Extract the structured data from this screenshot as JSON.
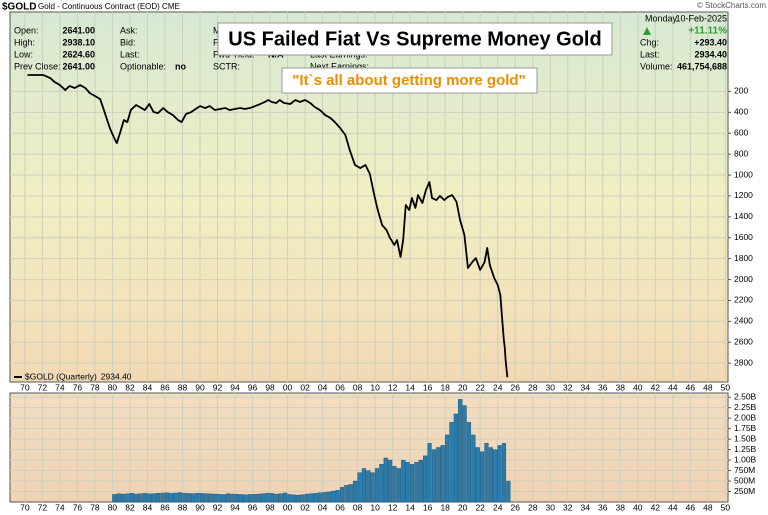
{
  "header": {
    "symbol": "$GOLD",
    "description": "Gold - Continuous Contract (EOD) CME",
    "copyright": "© StockCharts.com",
    "quote": [
      {
        "label": "Open:",
        "value": "2641.00"
      },
      {
        "label": "High:",
        "value": "2938.10"
      },
      {
        "label": "Low:",
        "value": "2624.60"
      },
      {
        "label": "Prev Close:",
        "value": "2641.00"
      }
    ],
    "quote2": [
      "Ask:",
      "Bid:",
      "Last:"
    ],
    "optionable": {
      "label": "Optionable:",
      "value": "no"
    },
    "col3": [
      "Mk",
      "Fv"
    ],
    "fwd_yield": {
      "label": "Fwd Yield:",
      "value": "N/A"
    },
    "sctr": "SCTR:",
    "col4": [
      "Last Earnings:",
      "Next Earnings:"
    ],
    "weekday": "Monday",
    "date": "10-Feb-2025",
    "change_pct": "+11.11%",
    "stats": [
      {
        "label": "Chg:",
        "value": "+293.40"
      },
      {
        "label": "Last:",
        "value": "2934.40"
      },
      {
        "label": "Volume:",
        "value": "461,754,688"
      }
    ],
    "title": "US Failed Fiat Vs Supreme Money Gold",
    "subtitle": "\"It`s all about getting more gold\""
  },
  "chart_data": [
    {
      "type": "line",
      "y_inverted": true,
      "grid": true,
      "xlim": [
        1968.3,
        2050.3
      ],
      "ylim": [
        -560,
        2980
      ],
      "yticks": [
        200,
        400,
        600,
        800,
        1000,
        1200,
        1400,
        1600,
        1800,
        2000,
        2200,
        2400,
        2600,
        2800
      ],
      "xticks": [
        {
          "value": 1970,
          "label": "70"
        },
        {
          "value": 1972,
          "label": "72"
        },
        {
          "value": 1974,
          "label": "74"
        },
        {
          "value": 1976,
          "label": "76"
        },
        {
          "value": 1978,
          "label": "78"
        },
        {
          "value": 1980,
          "label": "80"
        },
        {
          "value": 1982,
          "label": "82"
        },
        {
          "value": 1984,
          "label": "84"
        },
        {
          "value": 1986,
          "label": "86"
        },
        {
          "value": 1988,
          "label": "88"
        },
        {
          "value": 1990,
          "label": "90"
        },
        {
          "value": 1992,
          "label": "92"
        },
        {
          "value": 1994,
          "label": "94"
        },
        {
          "value": 1996,
          "label": "96"
        },
        {
          "value": 1998,
          "label": "98"
        },
        {
          "value": 2000,
          "label": "00"
        },
        {
          "value": 2002,
          "label": "02"
        },
        {
          "value": 2004,
          "label": "04"
        },
        {
          "value": 2006,
          "label": "06"
        },
        {
          "value": 2008,
          "label": "08"
        },
        {
          "value": 2010,
          "label": "10"
        },
        {
          "value": 2012,
          "label": "12"
        },
        {
          "value": 2014,
          "label": "14"
        },
        {
          "value": 2016,
          "label": "16"
        },
        {
          "value": 2018,
          "label": "18"
        },
        {
          "value": 2020,
          "label": "20"
        },
        {
          "value": 2022,
          "label": "22"
        },
        {
          "value": 2024,
          "label": "24"
        },
        {
          "value": 2026,
          "label": "26"
        },
        {
          "value": 2028,
          "label": "28"
        },
        {
          "value": 2030,
          "label": "30"
        },
        {
          "value": 2032,
          "label": "32"
        },
        {
          "value": 2034,
          "label": "34"
        },
        {
          "value": 2036,
          "label": "36"
        },
        {
          "value": 2038,
          "label": "38"
        },
        {
          "value": 2040,
          "label": "40"
        },
        {
          "value": 2042,
          "label": "42"
        },
        {
          "value": 2044,
          "label": "44"
        },
        {
          "value": 2046,
          "label": "46"
        },
        {
          "value": 2048,
          "label": "48"
        },
        {
          "value": 2050,
          "label": "50"
        }
      ],
      "x": [
        1970.3,
        1972.1,
        1972.9,
        1973.4,
        1974.0,
        1974.6,
        1975.1,
        1975.7,
        1976.3,
        1976.9,
        1977.4,
        1978.0,
        1978.6,
        1979.1,
        1979.7,
        1980.2,
        1980.5,
        1980.9,
        1981.3,
        1981.7,
        1982.1,
        1982.7,
        1983.1,
        1983.7,
        1984.2,
        1984.7,
        1985.2,
        1985.8,
        1986.3,
        1986.9,
        1987.5,
        1987.9,
        1988.4,
        1989.0,
        1989.5,
        1990.0,
        1990.6,
        1991.1,
        1991.7,
        1992.3,
        1992.9,
        1993.4,
        1994.0,
        1994.6,
        1995.1,
        1995.7,
        1996.3,
        1996.9,
        1997.4,
        1997.8,
        1998.2,
        1998.7,
        1999.1,
        1999.6,
        2000.3,
        2000.9,
        2001.4,
        2002.0,
        2002.6,
        2003.1,
        2003.7,
        2004.3,
        2004.9,
        2005.4,
        2006.0,
        2006.6,
        2007.1,
        2007.7,
        2008.3,
        2008.9,
        2009.4,
        2009.9,
        2010.3,
        2010.8,
        2011.3,
        2011.7,
        2012.2,
        2012.5,
        2012.9,
        2013.2,
        2013.5,
        2013.9,
        2014.2,
        2014.6,
        2014.9,
        2015.4,
        2015.8,
        2016.2,
        2016.5,
        2017.0,
        2017.4,
        2017.9,
        2018.3,
        2018.8,
        2019.3,
        2019.7,
        2020.2,
        2020.6,
        2021.1,
        2021.5,
        2022.0,
        2022.5,
        2022.8,
        2023.1,
        2023.6,
        2024.0,
        2024.3,
        2024.5,
        2024.7,
        2024.8,
        2024.9,
        2025.1
      ],
      "series": [
        {
          "name": "$GOLD (Quarterly)",
          "color": "#000000",
          "legend_value": "2934.40",
          "values": [
            43,
            43,
            72,
            110,
            139,
            187,
            148,
            167,
            139,
            167,
            215,
            244,
            273,
            397,
            550,
            646,
            694,
            588,
            474,
            493,
            378,
            330,
            349,
            378,
            320,
            397,
            407,
            359,
            397,
            426,
            474,
            493,
            416,
            397,
            368,
            340,
            359,
            340,
            378,
            368,
            359,
            378,
            368,
            359,
            368,
            359,
            340,
            320,
            301,
            282,
            301,
            311,
            282,
            311,
            320,
            282,
            301,
            282,
            311,
            349,
            378,
            426,
            455,
            493,
            550,
            617,
            761,
            904,
            933,
            904,
            990,
            1191,
            1335,
            1478,
            1526,
            1602,
            1669,
            1622,
            1784,
            1622,
            1287,
            1335,
            1220,
            1315,
            1191,
            1268,
            1143,
            1067,
            1220,
            1239,
            1200,
            1239,
            1210,
            1191,
            1258,
            1430,
            1574,
            1889,
            1832,
            1794,
            1908,
            1832,
            1698,
            1861,
            1985,
            2052,
            2148,
            2368,
            2578,
            2645,
            2769,
            2934.4
          ]
        }
      ]
    },
    {
      "type": "bar",
      "color": "#2b7bab",
      "grid": true,
      "xlim": [
        1968.3,
        2050.3
      ],
      "ylim": [
        0,
        2600
      ],
      "yticks": [
        {
          "value": 2500,
          "label": "2.50B"
        },
        {
          "value": 2250,
          "label": "2.25B"
        },
        {
          "value": 2000,
          "label": "2.00B"
        },
        {
          "value": 1750,
          "label": "1.75B"
        },
        {
          "value": 1500,
          "label": "1.50B"
        },
        {
          "value": 1250,
          "label": "1.25B"
        },
        {
          "value": 1000,
          "label": "1.00B"
        },
        {
          "value": 750,
          "label": "750M"
        },
        {
          "value": 500,
          "label": "500M"
        },
        {
          "value": 250,
          "label": "250M"
        }
      ],
      "xticks": [
        {
          "value": 1970,
          "label": "70"
        },
        {
          "value": 1972,
          "label": "72"
        },
        {
          "value": 1974,
          "label": "74"
        },
        {
          "value": 1976,
          "label": "76"
        },
        {
          "value": 1978,
          "label": "78"
        },
        {
          "value": 1980,
          "label": "80"
        },
        {
          "value": 1982,
          "label": "82"
        },
        {
          "value": 1984,
          "label": "84"
        },
        {
          "value": 1986,
          "label": "86"
        },
        {
          "value": 1988,
          "label": "88"
        },
        {
          "value": 1990,
          "label": "90"
        },
        {
          "value": 1992,
          "label": "92"
        },
        {
          "value": 1994,
          "label": "94"
        },
        {
          "value": 1996,
          "label": "96"
        },
        {
          "value": 1998,
          "label": "98"
        },
        {
          "value": 2000,
          "label": "00"
        },
        {
          "value": 2002,
          "label": "02"
        },
        {
          "value": 2004,
          "label": "04"
        },
        {
          "value": 2006,
          "label": "06"
        },
        {
          "value": 2008,
          "label": "08"
        },
        {
          "value": 2010,
          "label": "10"
        },
        {
          "value": 2012,
          "label": "12"
        },
        {
          "value": 2014,
          "label": "14"
        },
        {
          "value": 2016,
          "label": "16"
        },
        {
          "value": 2018,
          "label": "18"
        },
        {
          "value": 2020,
          "label": "20"
        },
        {
          "value": 2022,
          "label": "22"
        },
        {
          "value": 2024,
          "label": "24"
        },
        {
          "value": 2026,
          "label": "26"
        },
        {
          "value": 2028,
          "label": "28"
        },
        {
          "value": 2030,
          "label": "30"
        },
        {
          "value": 2032,
          "label": "32"
        },
        {
          "value": 2034,
          "label": "34"
        },
        {
          "value": 2036,
          "label": "36"
        },
        {
          "value": 2038,
          "label": "38"
        },
        {
          "value": 2040,
          "label": "40"
        },
        {
          "value": 2042,
          "label": "42"
        },
        {
          "value": 2044,
          "label": "44"
        },
        {
          "value": 2046,
          "label": "46"
        },
        {
          "value": 2048,
          "label": "48"
        },
        {
          "value": 2050,
          "label": "50"
        }
      ],
      "x": [
        1980.0,
        1980.5,
        1981.0,
        1981.5,
        1982.0,
        1982.5,
        1983.0,
        1983.5,
        1984.0,
        1984.5,
        1985.0,
        1985.5,
        1986.0,
        1986.5,
        1987.0,
        1987.5,
        1988.0,
        1988.5,
        1989.0,
        1989.5,
        1990.0,
        1990.5,
        1991.0,
        1991.5,
        1992.0,
        1992.5,
        1993.0,
        1993.5,
        1994.0,
        1994.5,
        1995.0,
        1995.5,
        1996.0,
        1996.5,
        1997.0,
        1997.5,
        1998.0,
        1998.5,
        1999.0,
        1999.5,
        2000.0,
        2000.5,
        2001.0,
        2001.5,
        2002.0,
        2002.5,
        2003.0,
        2003.5,
        2004.0,
        2004.5,
        2005.0,
        2005.5,
        2006.0,
        2006.5,
        2007.0,
        2007.5,
        2008.0,
        2008.5,
        2009.0,
        2009.5,
        2010.0,
        2010.5,
        2011.0,
        2011.5,
        2012.0,
        2012.5,
        2013.0,
        2013.5,
        2014.0,
        2014.5,
        2015.0,
        2015.5,
        2016.0,
        2016.5,
        2017.0,
        2017.5,
        2018.0,
        2018.5,
        2019.0,
        2019.5,
        2020.0,
        2020.5,
        2021.0,
        2021.5,
        2022.0,
        2022.5,
        2023.0,
        2023.5,
        2024.0,
        2024.5,
        2025.0
      ],
      "values": [
        180,
        200,
        190,
        200,
        210,
        190,
        200,
        205,
        195,
        200,
        210,
        215,
        220,
        205,
        215,
        225,
        210,
        205,
        200,
        210,
        205,
        200,
        195,
        190,
        185,
        180,
        200,
        190,
        185,
        180,
        175,
        180,
        185,
        190,
        200,
        210,
        205,
        190,
        200,
        215,
        180,
        170,
        165,
        175,
        190,
        200,
        210,
        220,
        230,
        240,
        260,
        280,
        350,
        400,
        420,
        500,
        700,
        800,
        750,
        700,
        800,
        900,
        1050,
        1000,
        850,
        800,
        1000,
        950,
        900,
        950,
        1000,
        1100,
        1400,
        1250,
        1300,
        1350,
        1600,
        1900,
        2100,
        2450,
        2300,
        1900,
        1600,
        1300,
        1200,
        1400,
        1300,
        1250,
        1350,
        1400,
        500
      ]
    }
  ]
}
